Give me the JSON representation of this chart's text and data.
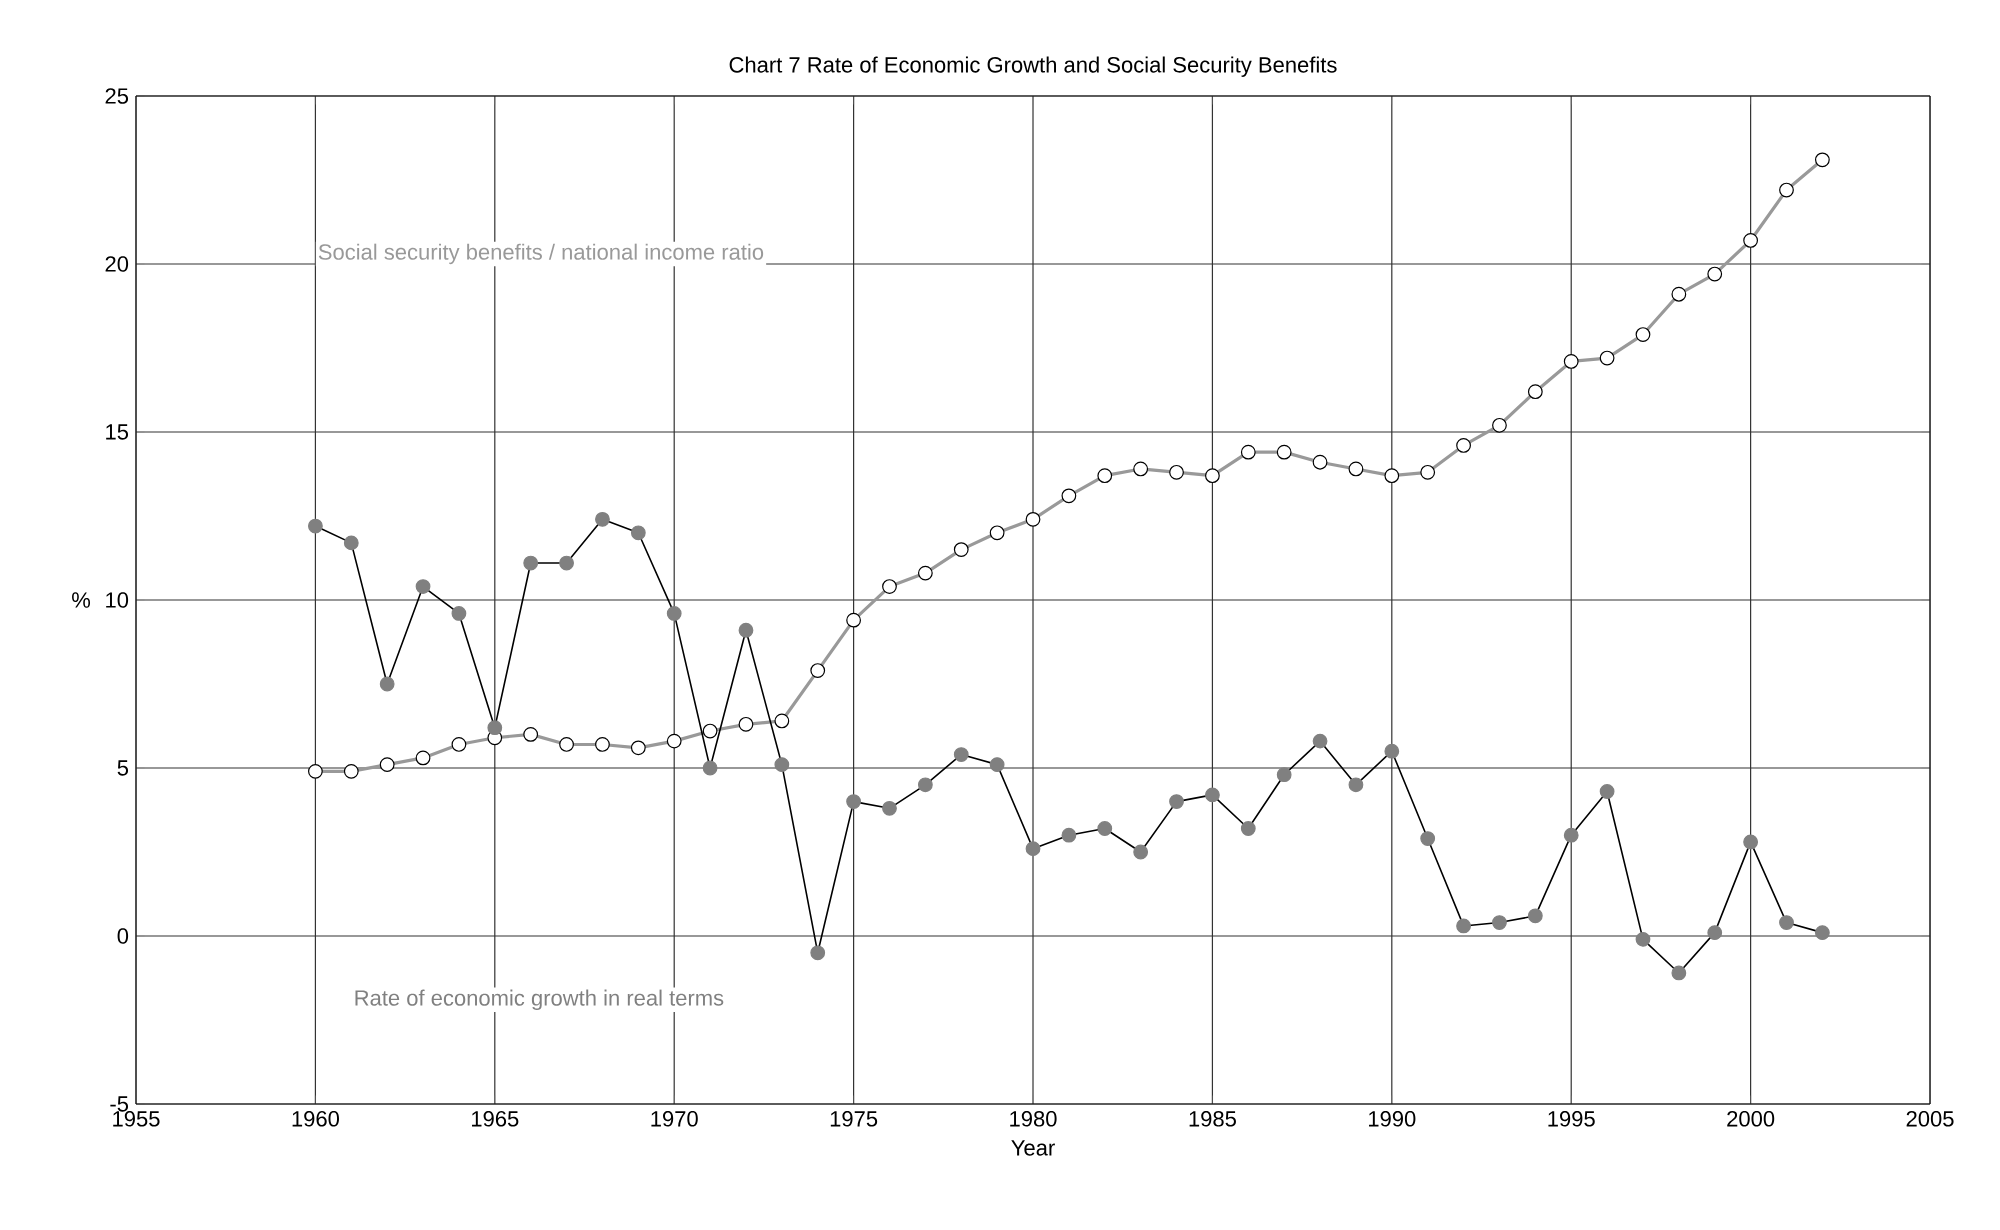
{
  "chart_data": {
    "type": "line",
    "title": "Chart 7 Rate of Economic Growth and Social Security Benefits",
    "xlabel": "Year",
    "ylabel": "%",
    "x": [
      1960,
      1961,
      1962,
      1963,
      1964,
      1965,
      1966,
      1967,
      1968,
      1969,
      1970,
      1971,
      1972,
      1973,
      1974,
      1975,
      1976,
      1977,
      1978,
      1979,
      1980,
      1981,
      1982,
      1983,
      1984,
      1985,
      1986,
      1987,
      1988,
      1989,
      1990,
      1991,
      1992,
      1993,
      1994,
      1995,
      1996,
      1997,
      1998,
      1999,
      2000,
      2001,
      2002
    ],
    "series": [
      {
        "name": "Social security benefits / national income ratio",
        "color": "#999999",
        "values": [
          4.9,
          4.9,
          5.1,
          5.3,
          5.7,
          5.9,
          6.0,
          5.7,
          5.7,
          5.6,
          5.8,
          6.1,
          6.3,
          6.4,
          7.9,
          9.4,
          10.4,
          10.8,
          11.5,
          12.0,
          12.4,
          13.1,
          13.7,
          13.9,
          13.8,
          13.7,
          14.4,
          14.4,
          14.1,
          13.9,
          13.7,
          13.8,
          14.6,
          15.2,
          16.2,
          17.1,
          17.2,
          17.9,
          19.1,
          19.7,
          20.7,
          22.2,
          23.1
        ]
      },
      {
        "name": "Rate of economic growth in real terms",
        "color": "#808080",
        "values": [
          12.2,
          11.7,
          7.5,
          10.4,
          9.6,
          6.2,
          11.1,
          11.1,
          12.4,
          12.0,
          9.6,
          5.0,
          9.1,
          5.1,
          -0.5,
          4.0,
          3.8,
          4.5,
          5.4,
          5.1,
          2.6,
          3.0,
          3.2,
          2.5,
          4.0,
          4.2,
          3.2,
          4.8,
          5.8,
          4.5,
          5.5,
          2.9,
          0.3,
          0.4,
          0.6,
          3.0,
          4.3,
          -0.1,
          -1.1,
          0.1,
          2.8,
          0.4,
          0.1
        ]
      }
    ],
    "xlim": [
      1955,
      2005
    ],
    "xticks": [
      1955,
      1960,
      1965,
      1970,
      1975,
      1980,
      1985,
      1990,
      1995,
      2000,
      2005
    ],
    "ylim": [
      -5,
      25
    ],
    "yticks": [
      -5,
      0,
      5,
      10,
      15,
      20,
      25
    ],
    "grid": true,
    "legend": false,
    "marker": "circle",
    "line_style": "solid"
  }
}
